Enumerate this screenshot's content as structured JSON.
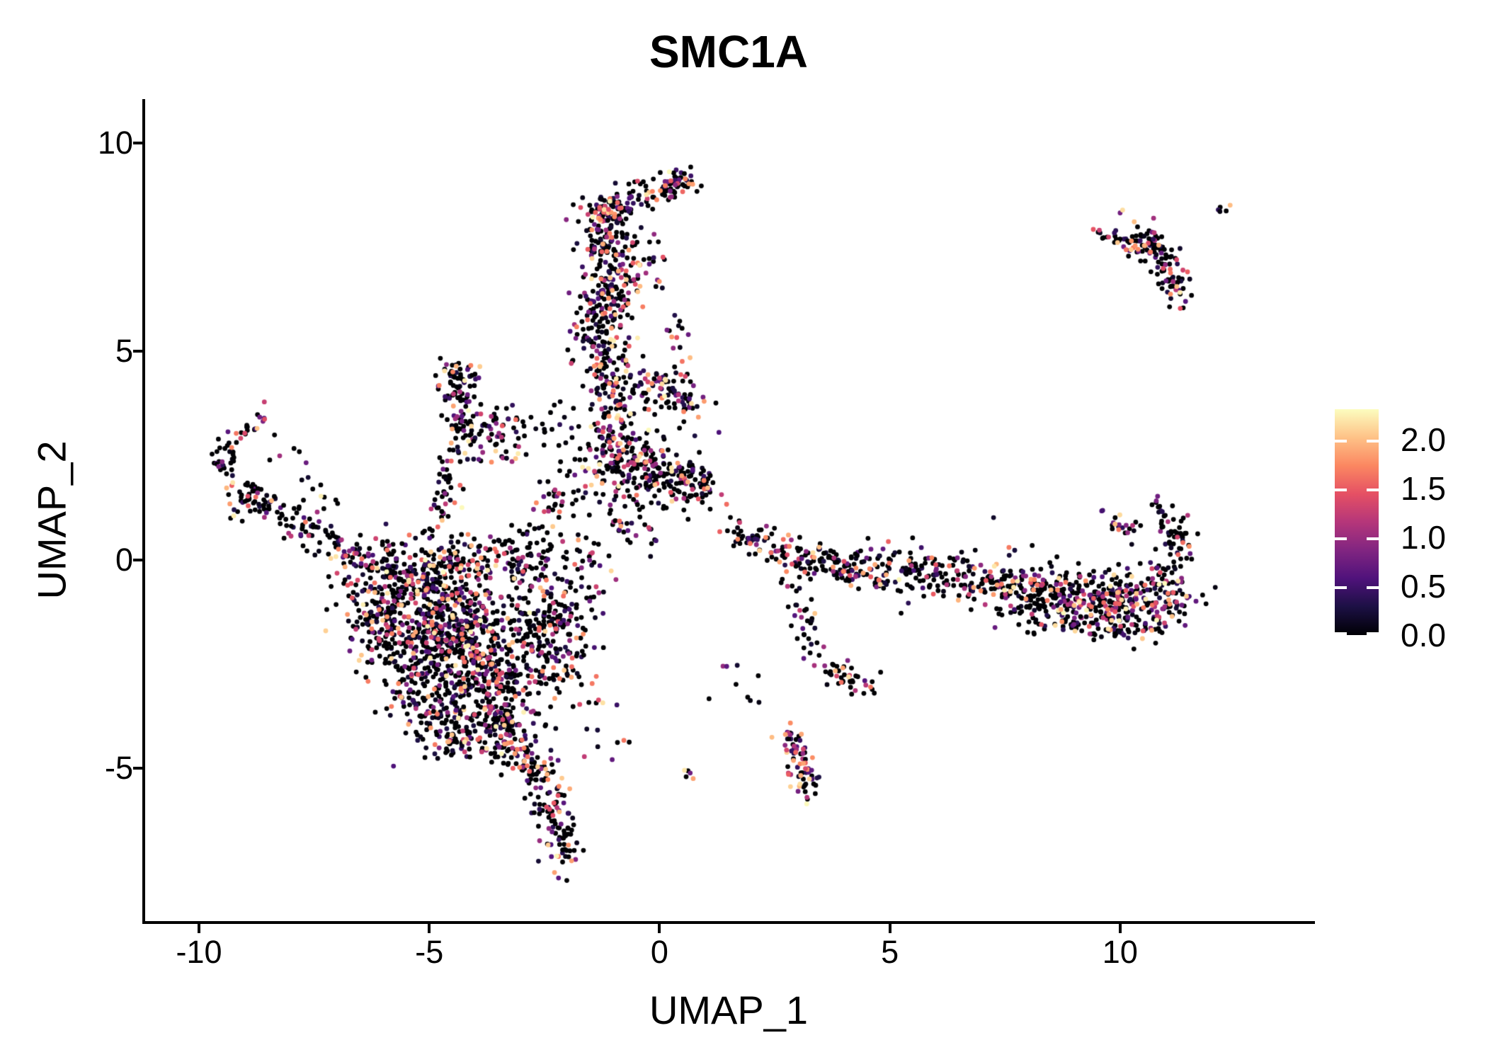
{
  "chart_data": {
    "type": "scatter",
    "title": "SMC1A",
    "xlabel": "UMAP_1",
    "ylabel": "UMAP_2",
    "x_ticks": [
      -10,
      -5,
      0,
      5,
      10
    ],
    "y_ticks": [
      10,
      5,
      0,
      -5
    ],
    "x_range": [
      -11.2,
      14.2
    ],
    "y_range": [
      -8.7,
      11.0
    ],
    "grid": false,
    "point_radius_px": 3.4,
    "value_range": [
      0,
      2.31
    ],
    "colormap": {
      "name": "magma",
      "stops": [
        "#000004",
        "#1c1044",
        "#4f127b",
        "#812581",
        "#b5367a",
        "#e55064",
        "#fb8761",
        "#fec287",
        "#fcfdbf"
      ]
    },
    "colorbar": {
      "position": "right",
      "ticks": [
        {
          "v": 2.0,
          "label": "2.0"
        },
        {
          "v": 1.5,
          "label": "1.5"
        },
        {
          "v": 1.0,
          "label": "1.0"
        },
        {
          "v": 0.5,
          "label": "0.5"
        },
        {
          "v": 0.0,
          "label": "0.0"
        }
      ]
    },
    "expression_profiles": {
      "default": {
        "p_zero": 0.5,
        "pow": 1.9
      },
      "mid": {
        "p_zero": 0.38,
        "pow": 1.5
      },
      "warm": {
        "p_zero": 0.22,
        "pow": 1.05
      }
    },
    "seed": 42,
    "cluster_columns": [
      "x1",
      "y1",
      "x2",
      "y2",
      "spread_x",
      "spread_y",
      "n_points",
      "profile"
    ],
    "clusters": [
      [
        0.15,
        8.8,
        0.65,
        9.2,
        0.18,
        0.16,
        55,
        "mid"
      ],
      [
        -1.45,
        8.15,
        -0.7,
        8.75,
        0.22,
        0.2,
        90,
        "default"
      ],
      [
        -0.6,
        8.6,
        0.0,
        8.95,
        0.2,
        0.18,
        25,
        "default"
      ],
      [
        -1.35,
        8.0,
        -1.05,
        6.4,
        0.32,
        0.3,
        130,
        "default"
      ],
      [
        -0.55,
        7.8,
        -0.7,
        6.6,
        0.22,
        0.3,
        40,
        "default"
      ],
      [
        -1.3,
        6.4,
        -1.15,
        4.6,
        0.33,
        0.3,
        150,
        "default"
      ],
      [
        -1.2,
        4.6,
        -1.0,
        3.1,
        0.3,
        0.33,
        80,
        "default"
      ],
      [
        -0.3,
        7.5,
        0.05,
        6.4,
        0.22,
        0.35,
        16,
        "default"
      ],
      [
        0.3,
        5.8,
        0.45,
        4.55,
        0.12,
        0.2,
        14,
        "default"
      ],
      [
        0.0,
        4.4,
        0.75,
        3.65,
        0.25,
        0.26,
        75,
        "mid"
      ],
      [
        -0.55,
        4.3,
        -0.15,
        4.05,
        0.2,
        0.22,
        20,
        "default"
      ],
      [
        -4.55,
        4.6,
        -4.0,
        4.35,
        0.16,
        0.12,
        30,
        "default"
      ],
      [
        -4.5,
        4.45,
        -4.15,
        2.65,
        0.17,
        0.25,
        85,
        "default"
      ],
      [
        -4.1,
        3.3,
        -3.15,
        2.65,
        0.3,
        0.3,
        55,
        "default"
      ],
      [
        -4.55,
        2.3,
        -4.8,
        0.95,
        0.15,
        0.3,
        40,
        "default"
      ],
      [
        -3.6,
        3.6,
        -2.45,
        3.1,
        0.25,
        0.2,
        20,
        "default"
      ],
      [
        -8.55,
        3.4,
        -9.15,
        3.05,
        0.12,
        0.12,
        20,
        "mid"
      ],
      [
        -9.3,
        2.9,
        -9.5,
        2.05,
        0.12,
        0.2,
        30,
        "default"
      ],
      [
        -9.0,
        1.55,
        -9.0,
        1.55,
        0.25,
        0.2,
        40,
        "default"
      ],
      [
        -8.75,
        1.45,
        -7.6,
        0.7,
        0.22,
        0.18,
        55,
        "default"
      ],
      [
        -7.6,
        0.7,
        -6.65,
        -0.05,
        0.25,
        0.2,
        45,
        "default"
      ],
      [
        -8.25,
        2.6,
        -7.1,
        1.3,
        0.3,
        0.3,
        15,
        "default"
      ],
      [
        -5.6,
        -0.8,
        -3.4,
        -2.8,
        0.75,
        0.7,
        900,
        "default"
      ],
      [
        -6.3,
        -0.3,
        -2.7,
        0.25,
        0.4,
        0.32,
        260,
        "default"
      ],
      [
        -6.55,
        -0.6,
        -5.2,
        -3.2,
        0.3,
        0.45,
        140,
        "default"
      ],
      [
        -5.2,
        -3.3,
        -4.2,
        -4.5,
        0.3,
        0.33,
        130,
        "default"
      ],
      [
        -4.0,
        -3.4,
        -3.05,
        -4.6,
        0.35,
        0.38,
        160,
        "default"
      ],
      [
        -2.8,
        -0.6,
        -2.2,
        -2.6,
        0.33,
        0.5,
        160,
        "default"
      ],
      [
        -3.0,
        -4.7,
        -2.5,
        -5.4,
        0.25,
        0.25,
        60,
        "default"
      ],
      [
        -2.5,
        -5.5,
        -2.0,
        -7.15,
        0.2,
        0.3,
        90,
        "default"
      ],
      [
        -2.0,
        -1.0,
        -1.55,
        -3.0,
        0.28,
        0.5,
        40,
        "default"
      ],
      [
        -2.4,
        0.3,
        -1.4,
        -0.7,
        0.35,
        0.45,
        50,
        "default"
      ],
      [
        -1.5,
        -3.3,
        -0.9,
        -4.6,
        0.3,
        0.4,
        10,
        "default"
      ],
      [
        -1.3,
        2.35,
        0.55,
        1.85,
        0.45,
        0.38,
        230,
        "default"
      ],
      [
        0.6,
        2.1,
        1.05,
        1.6,
        0.2,
        0.2,
        55,
        "default"
      ],
      [
        -1.5,
        3.4,
        -0.35,
        2.65,
        0.4,
        0.33,
        70,
        "default"
      ],
      [
        -1.2,
        1.0,
        -0.4,
        0.65,
        0.3,
        0.25,
        30,
        "default"
      ],
      [
        -2.5,
        1.1,
        -1.6,
        2.1,
        0.4,
        0.4,
        40,
        "default"
      ],
      [
        1.5,
        0.75,
        2.6,
        0.15,
        0.18,
        0.18,
        45,
        "default"
      ],
      [
        2.6,
        0.15,
        4.2,
        -0.25,
        0.25,
        0.25,
        110,
        "default"
      ],
      [
        4.2,
        -0.25,
        5.4,
        -0.2,
        0.3,
        0.28,
        80,
        "default"
      ],
      [
        5.4,
        -0.3,
        7.2,
        -0.5,
        0.3,
        0.28,
        110,
        "default"
      ],
      [
        7.2,
        -0.6,
        9.2,
        -1.0,
        0.35,
        0.33,
        220,
        "default"
      ],
      [
        9.2,
        -0.9,
        11.2,
        -1.05,
        0.4,
        0.36,
        280,
        "mid"
      ],
      [
        11.0,
        -0.35,
        11.35,
        0.7,
        0.18,
        0.25,
        55,
        "default"
      ],
      [
        10.85,
        1.25,
        11.05,
        0.35,
        0.1,
        0.2,
        22,
        "default"
      ],
      [
        10.05,
        0.8,
        10.05,
        0.8,
        0.15,
        0.12,
        12,
        "mid"
      ],
      [
        9.85,
        1.1,
        10.2,
        0.75,
        0.15,
        0.15,
        8,
        "mid"
      ],
      [
        8.0,
        -1.5,
        10.6,
        -1.6,
        0.3,
        0.22,
        70,
        "default"
      ],
      [
        9.65,
        1.2,
        9.65,
        1.2,
        0.05,
        0.05,
        1,
        "default"
      ],
      [
        7.35,
        1.0,
        7.35,
        1.0,
        0.05,
        0.05,
        1,
        "default"
      ],
      [
        2.9,
        -0.6,
        3.4,
        -2.3,
        0.12,
        0.3,
        30,
        "default"
      ],
      [
        3.5,
        -2.4,
        4.5,
        -3.15,
        0.18,
        0.2,
        45,
        "default"
      ],
      [
        1.3,
        -2.5,
        2.5,
        -3.55,
        0.35,
        0.3,
        9,
        "default"
      ],
      [
        2.75,
        -4.15,
        3.35,
        -5.5,
        0.16,
        0.2,
        75,
        "warm"
      ],
      [
        0.5,
        -5.0,
        0.7,
        -5.15,
        0.09,
        0.08,
        5,
        "warm"
      ],
      [
        10.25,
        7.75,
        10.9,
        7.35,
        0.25,
        0.2,
        70,
        "mid"
      ],
      [
        10.9,
        7.2,
        11.35,
        6.4,
        0.18,
        0.24,
        60,
        "mid"
      ],
      [
        9.5,
        7.85,
        10.05,
        7.7,
        0.12,
        0.1,
        14,
        "mid"
      ],
      [
        11.95,
        8.25,
        12.3,
        8.5,
        0.08,
        0.07,
        5,
        "mid"
      ],
      [
        10.0,
        8.35,
        10.0,
        8.35,
        0.04,
        0.04,
        2,
        "default"
      ]
    ]
  }
}
